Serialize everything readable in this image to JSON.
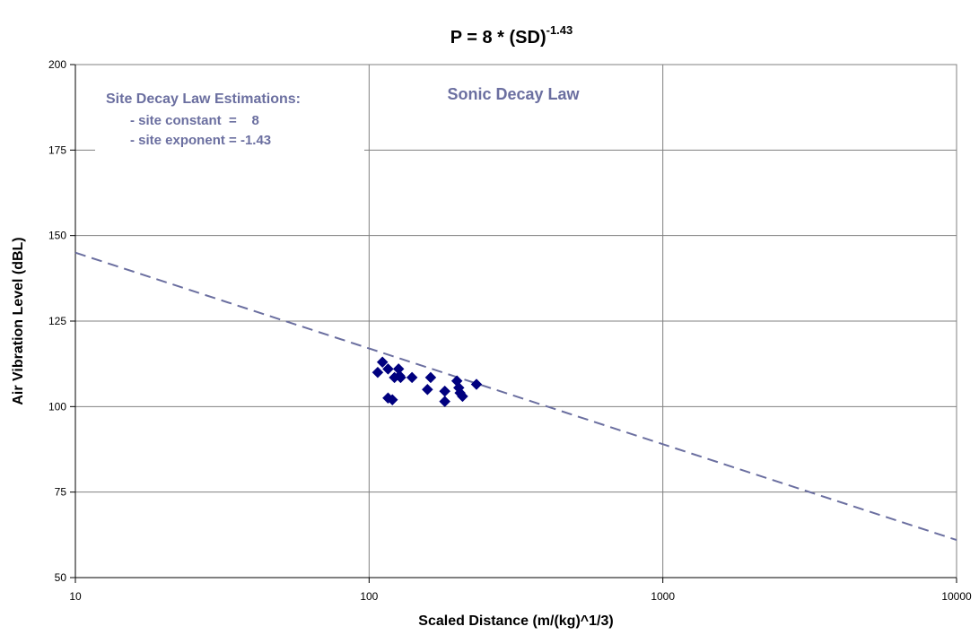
{
  "chart_data": {
    "type": "scatter",
    "title": {
      "base": "P = 8 * (SD)",
      "exponent": "-1.43"
    },
    "xlabel": "Scaled Distance (m/(kg)^1/3)",
    "ylabel": "Air Vibration Level (dBL)",
    "x_scale": "log",
    "xlim": [
      10,
      10000
    ],
    "ylim": [
      50,
      200
    ],
    "x_ticks": [
      10,
      100,
      1000,
      10000
    ],
    "y_ticks": [
      50,
      75,
      100,
      125,
      150,
      175,
      200
    ],
    "grid": true,
    "annotations": {
      "estimations_heading": "Site Decay Law Estimations:",
      "site_constant": "- site constant  =    8",
      "site_exponent": "- site exponent = -1.43",
      "law_label": "Sonic Decay Law"
    },
    "fit_line": {
      "style": "dashed",
      "points": [
        [
          10,
          145
        ],
        [
          10000,
          61
        ]
      ],
      "color": "#6b6fa0"
    },
    "series": [
      {
        "marker": "diamond",
        "color": "#00007f",
        "points": [
          [
            107,
            110
          ],
          [
            111,
            113
          ],
          [
            116,
            111
          ],
          [
            116,
            102.5
          ],
          [
            120,
            102
          ],
          [
            122,
            108.5
          ],
          [
            126,
            111
          ],
          [
            127,
            109
          ],
          [
            128,
            108.5
          ],
          [
            140,
            108.5
          ],
          [
            158,
            105
          ],
          [
            162,
            108.5
          ],
          [
            181,
            104.5
          ],
          [
            181,
            101.5
          ],
          [
            199,
            107.5
          ],
          [
            202,
            105.5
          ],
          [
            204,
            104
          ],
          [
            208,
            103
          ],
          [
            232,
            106.5
          ]
        ]
      }
    ],
    "colors": {
      "annotation": "#6b6fa0",
      "grid": "#808080",
      "axis": "#000000"
    }
  }
}
